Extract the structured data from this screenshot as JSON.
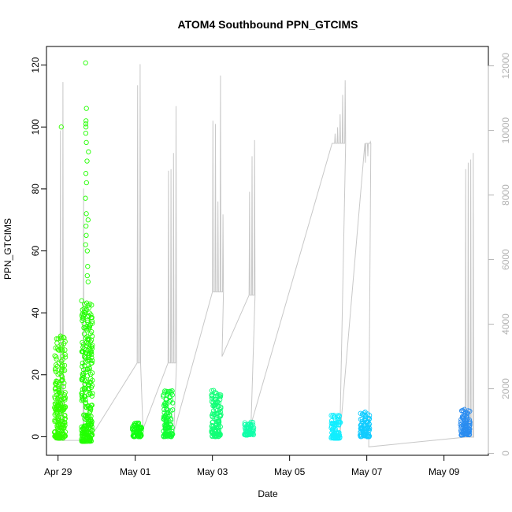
{
  "chart_data": {
    "type": "scatter",
    "title": "ATOM4 Southbound PPN_GTCIMS",
    "xlabel": "Date",
    "ylabel": "PPN_GTCIMS",
    "x_ticks": [
      "Apr 29",
      "May 01",
      "May 03",
      "May 05",
      "May 07",
      "May 09"
    ],
    "x_tick_days": [
      0,
      2,
      4,
      6,
      8,
      10
    ],
    "xlim_days": [
      -0.3,
      11.15
    ],
    "ylim": [
      -6,
      126
    ],
    "y_ticks": [
      0,
      20,
      40,
      60,
      80,
      100,
      120
    ],
    "y2lim": [
      -60,
      12600
    ],
    "y2_ticks": [
      0,
      2000,
      4000,
      6000,
      8000,
      10000,
      12000
    ],
    "grid": false,
    "series": [
      {
        "day": 0.05,
        "ymin": -0.5,
        "ymax": 34,
        "outliers": [
          100
        ],
        "color": "#33ff00"
      },
      {
        "day": 0.75,
        "ymin": -1.5,
        "ymax": 44,
        "outliers": [
          50,
          52,
          55,
          60,
          62,
          65,
          68,
          70,
          72,
          77,
          82,
          85,
          89,
          92,
          95,
          98,
          100,
          101,
          102,
          106,
          120.7
        ],
        "color": "#22ff00"
      },
      {
        "day": 2.05,
        "ymin": 0,
        "ymax": 4.5,
        "outliers": [],
        "color": "#11ff11"
      },
      {
        "day": 2.85,
        "ymin": 0,
        "ymax": 15,
        "outliers": [],
        "color": "#11ff33"
      },
      {
        "day": 4.1,
        "ymin": 0,
        "ymax": 15,
        "outliers": [],
        "color": "#11ff77"
      },
      {
        "day": 4.95,
        "ymin": 0.5,
        "ymax": 5,
        "outliers": [],
        "color": "#11ffaa"
      },
      {
        "day": 7.2,
        "ymin": -0.5,
        "ymax": 7,
        "outliers": [],
        "color": "#11eeff"
      },
      {
        "day": 7.95,
        "ymin": 0,
        "ymax": 8,
        "outliers": [],
        "color": "#11ccff"
      },
      {
        "day": 10.55,
        "ymin": 0.5,
        "ymax": 9,
        "outliers": [],
        "color": "#2a8cf0"
      }
    ],
    "altitude_line": {
      "color": "#c8c8c8",
      "y2_axis_ticks_color": "#b3b3b3",
      "segments": [
        {
          "day": 0.0,
          "base": 400
        },
        {
          "day": 0.05,
          "base": 400,
          "spikes": [
            10000,
            11500
          ]
        },
        {
          "day": 0.65,
          "base": 400,
          "spikes": [
            8200
          ]
        },
        {
          "day": 0.9,
          "base": 600
        },
        {
          "day": 2.05,
          "base": 2800,
          "spikes": [
            11400,
            12050
          ]
        },
        {
          "day": 2.2,
          "base": 750
        },
        {
          "day": 2.85,
          "base": 2800,
          "spikes": [
            8750,
            8800,
            9300,
            10750
          ]
        },
        {
          "day": 3.0,
          "base": 650
        },
        {
          "day": 4.0,
          "base": 5000,
          "spikes": [
            10300,
            10200,
            7800,
            11700,
            7400
          ]
        },
        {
          "day": 4.25,
          "base": 3000
        },
        {
          "day": 4.95,
          "base": 4900,
          "spikes": [
            8100,
            9200,
            9700
          ]
        },
        {
          "day": 5.0,
          "base": 900
        },
        {
          "day": 7.1,
          "base": 9600,
          "spikes": [
            9600,
            9900,
            10100,
            10500,
            11100,
            11550
          ]
        },
        {
          "day": 7.3,
          "base": 500
        },
        {
          "day": 7.95,
          "base": 9600,
          "spikes": [
            9000,
            9200,
            9650
          ]
        },
        {
          "day": 8.05,
          "base": 200
        },
        {
          "day": 10.55,
          "base": 500,
          "spikes": [
            8800,
            9000,
            9100,
            9300
          ]
        },
        {
          "day": 10.7,
          "base": 500
        }
      ]
    }
  }
}
